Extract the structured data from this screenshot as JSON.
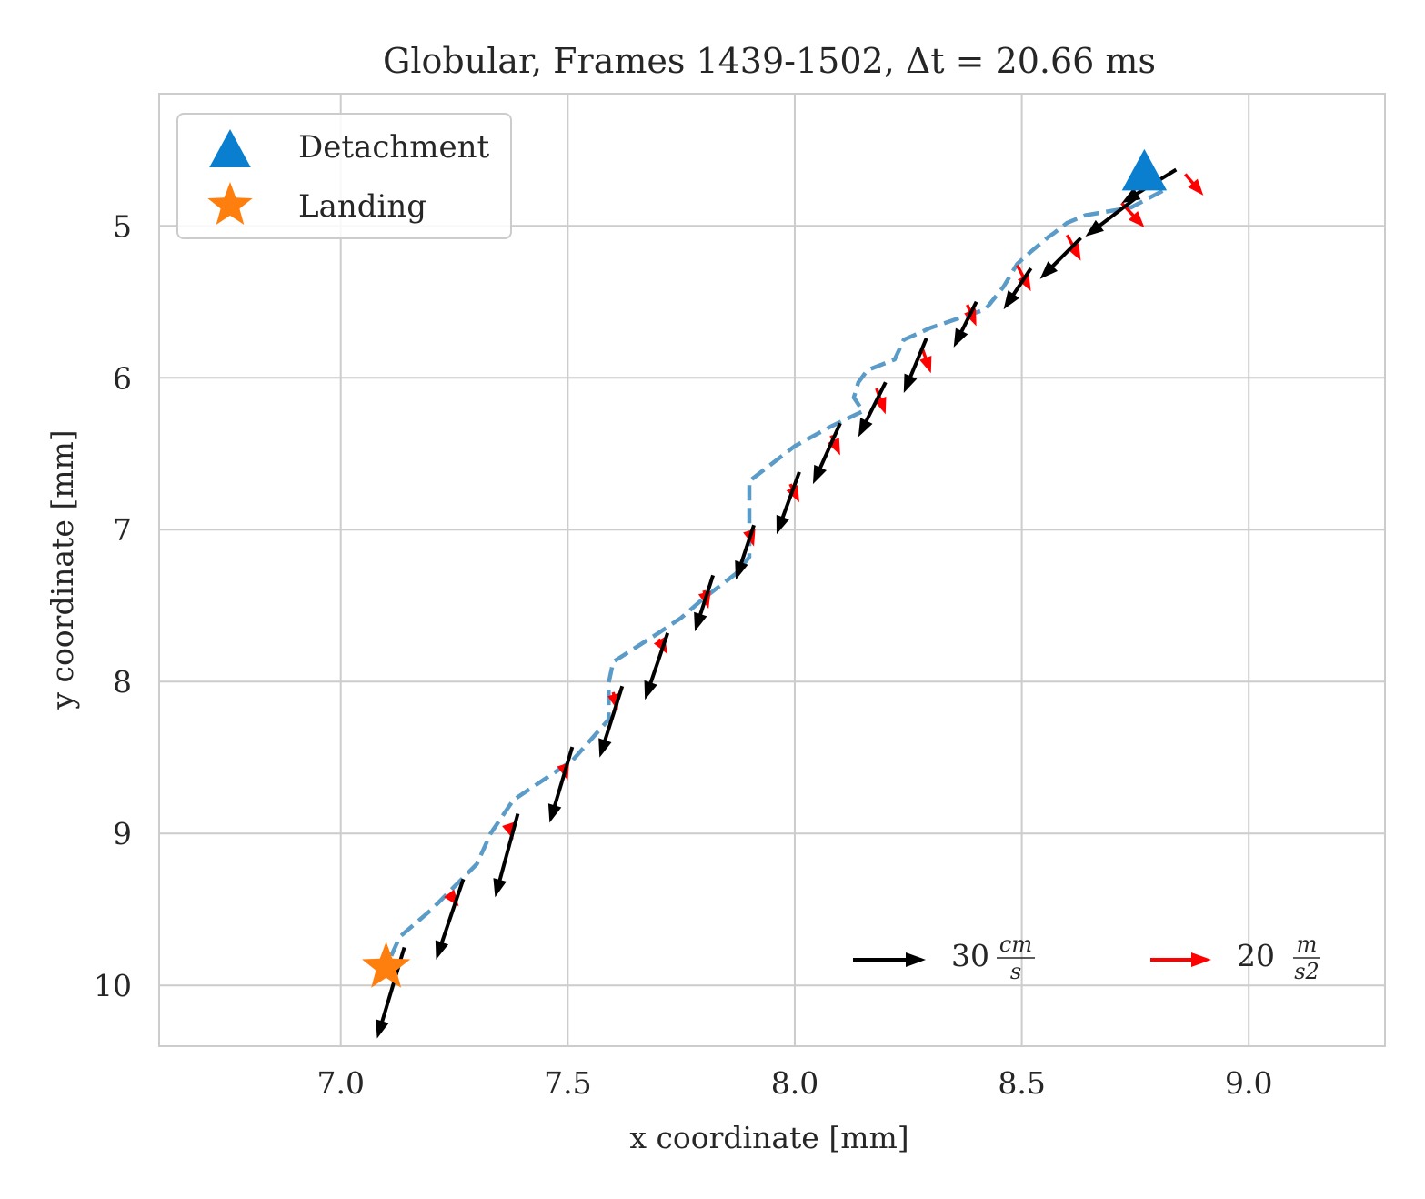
{
  "chart_data": {
    "type": "scatter",
    "title": "Globular, Frames 1439-1502, Δt = 20.66 ms",
    "xlabel": "x coordinate [mm]",
    "ylabel": "y coordinate [mm]",
    "xlim": [
      6.6,
      9.3
    ],
    "ylim": [
      10.4,
      4.13
    ],
    "y_inverted": true,
    "grid": true,
    "xticks": [
      7.0,
      7.5,
      8.0,
      8.5,
      9.0
    ],
    "xtick_labels": [
      "7.0",
      "7.5",
      "8.0",
      "8.5",
      "9.0"
    ],
    "yticks": [
      5,
      6,
      7,
      8,
      9,
      10
    ],
    "ytick_labels": [
      "5",
      "6",
      "7",
      "8",
      "9",
      "10"
    ],
    "legend": {
      "placement": "top-left",
      "entries": [
        {
          "label": "Detachment",
          "marker": "triangle",
          "color": "#0a7fd0"
        },
        {
          "label": "Landing",
          "marker": "star",
          "color": "#ff7f0e"
        }
      ]
    },
    "trajectory": {
      "color": "#5b9bc8",
      "style": "dashed",
      "points": [
        [
          8.81,
          4.77
        ],
        [
          8.74,
          4.88
        ],
        [
          8.64,
          4.93
        ],
        [
          8.6,
          4.98
        ],
        [
          8.57,
          5.05
        ],
        [
          8.56,
          5.07
        ],
        [
          8.52,
          5.17
        ],
        [
          8.49,
          5.25
        ],
        [
          8.46,
          5.4
        ],
        [
          8.42,
          5.55
        ],
        [
          8.35,
          5.62
        ],
        [
          8.3,
          5.67
        ],
        [
          8.24,
          5.75
        ],
        [
          8.22,
          5.88
        ],
        [
          8.16,
          5.95
        ],
        [
          8.14,
          6.03
        ],
        [
          8.13,
          6.13
        ],
        [
          8.15,
          6.22
        ],
        [
          8.08,
          6.32
        ],
        [
          8.0,
          6.45
        ],
        [
          7.9,
          6.68
        ],
        [
          7.9,
          6.77
        ],
        [
          7.9,
          6.98
        ],
        [
          7.9,
          7.18
        ],
        [
          7.87,
          7.29
        ],
        [
          7.8,
          7.45
        ],
        [
          7.75,
          7.58
        ],
        [
          7.7,
          7.68
        ],
        [
          7.6,
          7.87
        ],
        [
          7.59,
          8.01
        ],
        [
          7.59,
          8.25
        ],
        [
          7.51,
          8.52
        ],
        [
          7.38,
          8.78
        ],
        [
          7.33,
          9.0
        ],
        [
          7.3,
          9.2
        ],
        [
          7.2,
          9.5
        ],
        [
          7.13,
          9.68
        ],
        [
          7.1,
          9.88
        ]
      ]
    },
    "detachment": {
      "x": 8.77,
      "y": 4.65
    },
    "landing": {
      "x": 7.1,
      "y": 9.88
    },
    "velocity_vectors": {
      "color": "#000000",
      "scale_label": "30 cm/s",
      "vectors": [
        {
          "x": 8.84,
          "y": 4.63,
          "u": -0.12,
          "v": 0.22
        },
        {
          "x": 8.75,
          "y": 4.82,
          "u": -0.11,
          "v": 0.25
        },
        {
          "x": 8.63,
          "y": 5.08,
          "u": -0.09,
          "v": 0.27
        },
        {
          "x": 8.52,
          "y": 5.28,
          "u": -0.06,
          "v": 0.27
        },
        {
          "x": 8.4,
          "y": 5.5,
          "u": -0.05,
          "v": 0.3
        },
        {
          "x": 8.29,
          "y": 5.74,
          "u": -0.05,
          "v": 0.36
        },
        {
          "x": 8.2,
          "y": 6.03,
          "u": -0.06,
          "v": 0.36
        },
        {
          "x": 8.1,
          "y": 6.3,
          "u": -0.06,
          "v": 0.4
        },
        {
          "x": 8.01,
          "y": 6.62,
          "u": -0.05,
          "v": 0.41
        },
        {
          "x": 7.91,
          "y": 6.97,
          "u": -0.04,
          "v": 0.36
        },
        {
          "x": 7.82,
          "y": 7.3,
          "u": -0.04,
          "v": 0.37
        },
        {
          "x": 7.72,
          "y": 7.68,
          "u": -0.05,
          "v": 0.44
        },
        {
          "x": 7.62,
          "y": 8.03,
          "u": -0.05,
          "v": 0.47
        },
        {
          "x": 7.51,
          "y": 8.43,
          "u": -0.05,
          "v": 0.5
        },
        {
          "x": 7.39,
          "y": 8.87,
          "u": -0.05,
          "v": 0.55
        },
        {
          "x": 7.27,
          "y": 9.3,
          "u": -0.06,
          "v": 0.53
        },
        {
          "x": 7.14,
          "y": 9.75,
          "u": -0.06,
          "v": 0.6
        }
      ]
    },
    "acceleration_vectors": {
      "color": "#ff0000",
      "scale_label": "20 m/s²",
      "vectors": [
        {
          "x": 8.86,
          "y": 4.66,
          "u": 0.04,
          "v": 0.14
        },
        {
          "x": 8.72,
          "y": 4.85,
          "u": 0.05,
          "v": 0.16
        },
        {
          "x": 8.6,
          "y": 5.06,
          "u": 0.03,
          "v": 0.17
        },
        {
          "x": 8.49,
          "y": 5.26,
          "u": 0.03,
          "v": 0.17
        },
        {
          "x": 8.38,
          "y": 5.52,
          "u": 0.02,
          "v": 0.14
        },
        {
          "x": 8.28,
          "y": 5.8,
          "u": 0.02,
          "v": 0.17
        },
        {
          "x": 8.18,
          "y": 6.07,
          "u": 0.02,
          "v": 0.17
        },
        {
          "x": 8.08,
          "y": 6.38,
          "u": 0.02,
          "v": 0.13
        },
        {
          "x": 7.99,
          "y": 6.7,
          "u": 0.02,
          "v": 0.12
        },
        {
          "x": 7.9,
          "y": 7.01,
          "u": 0.01,
          "v": 0.1
        },
        {
          "x": 7.8,
          "y": 7.4,
          "u": 0.01,
          "v": 0.12
        },
        {
          "x": 7.7,
          "y": 7.72,
          "u": 0.02,
          "v": 0.1
        },
        {
          "x": 7.6,
          "y": 8.07,
          "u": 0.01,
          "v": 0.12
        },
        {
          "x": 7.49,
          "y": 8.55,
          "u": 0.01,
          "v": 0.1
        },
        {
          "x": 7.37,
          "y": 8.95,
          "u": 0.01,
          "v": 0.09
        },
        {
          "x": 7.24,
          "y": 9.4,
          "u": 0.02,
          "v": 0.08
        }
      ]
    },
    "scale_key": [
      {
        "color": "#000000",
        "number": "30",
        "num": "cm",
        "den": "s"
      },
      {
        "color": "#ff0000",
        "number": "20",
        "num": "m",
        "den": "s2"
      }
    ]
  }
}
